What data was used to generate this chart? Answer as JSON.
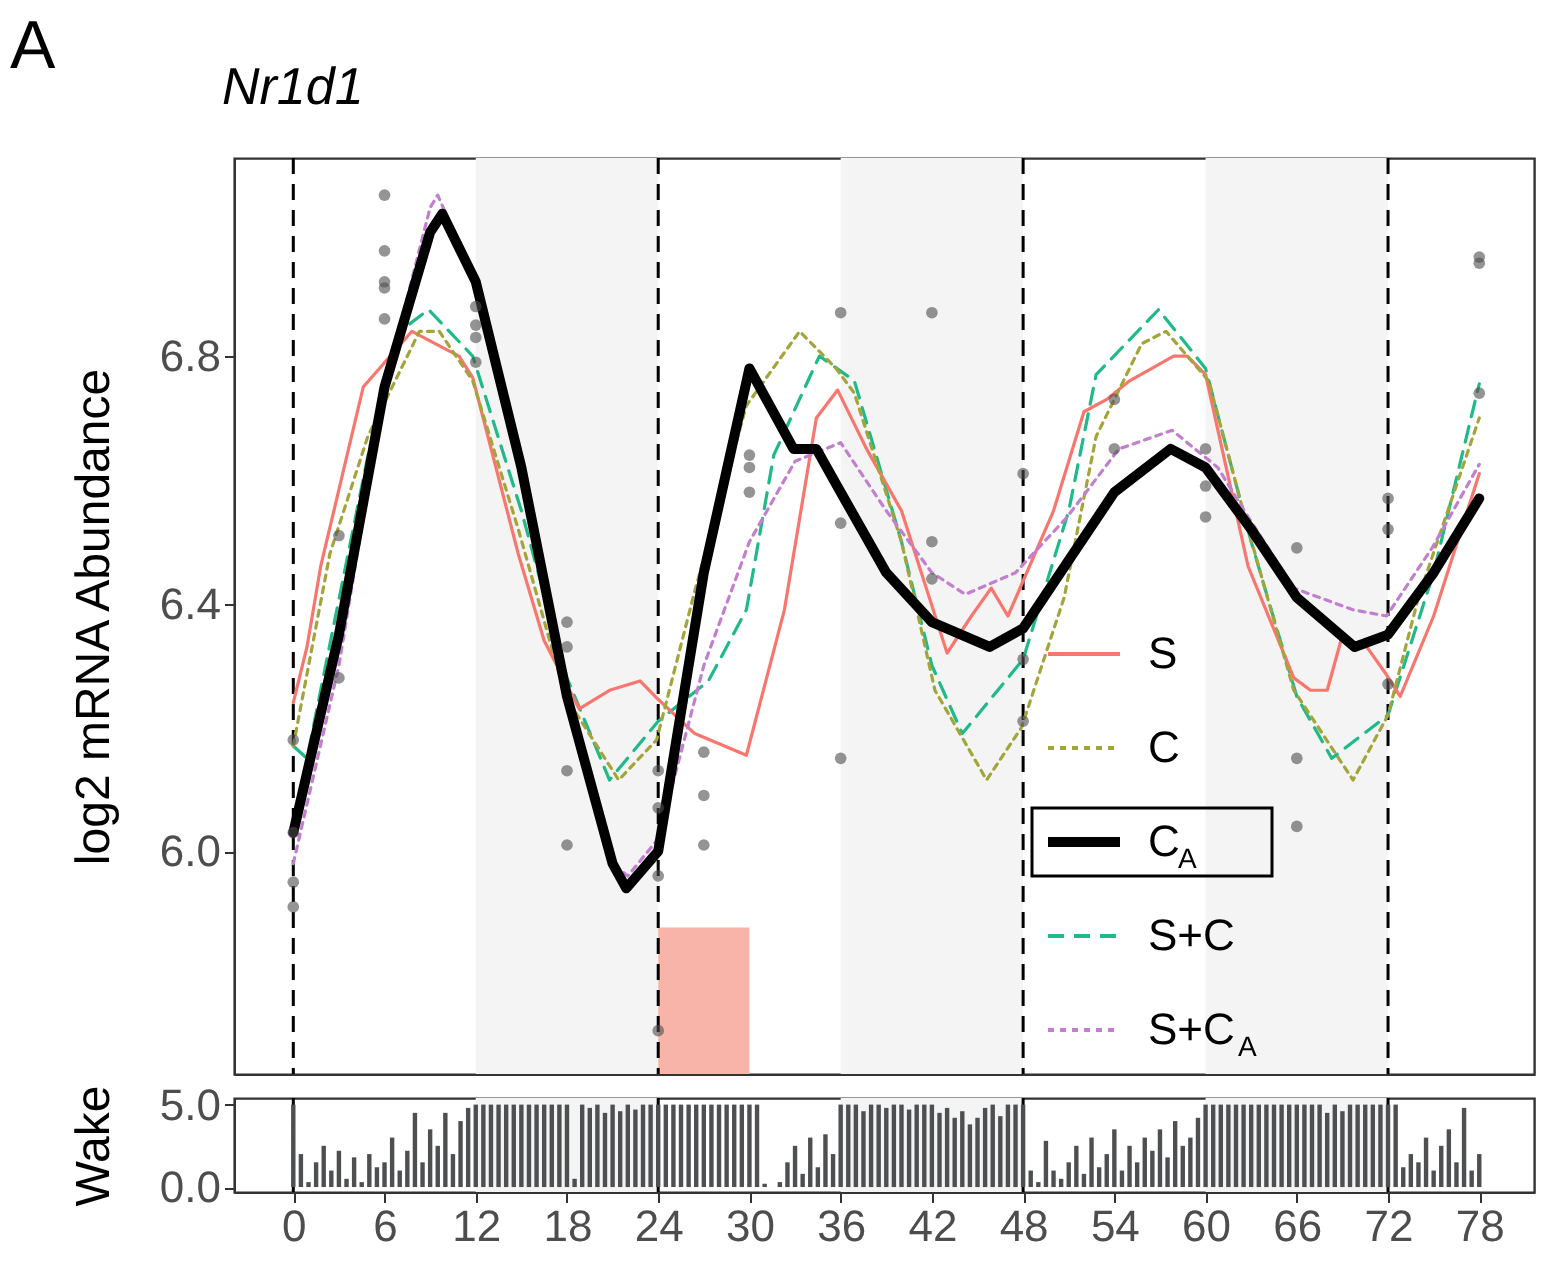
{
  "chart_data": [
    {
      "type": "line",
      "title": "Nr1d1",
      "ylabel": "log2 mRNA Abundance",
      "annotations": [
        "A"
      ],
      "xlim": [
        -3.9,
        81.6
      ],
      "xticks": [
        0,
        6,
        12,
        18,
        24,
        30,
        36,
        42,
        48,
        54,
        60,
        66,
        72,
        78
      ],
      "ylim": [
        5.64,
        7.12
      ],
      "yticks": [
        {
          "value": 6,
          "label": "6.0"
        },
        6.4,
        6.8
      ],
      "tick_labels": "y",
      "legend": "bottom right",
      "ref_lines": [
        {
          "axis": "x",
          "value": 0,
          "line_style": "dashed",
          "color": "#000000"
        },
        {
          "axis": "x",
          "value": 24,
          "line_style": "dashed",
          "color": "#000000"
        },
        {
          "axis": "x",
          "value": 48,
          "line_style": "dashed",
          "color": "#000000"
        },
        {
          "axis": "x",
          "value": 72,
          "line_style": "dashed",
          "color": "#000000"
        }
      ],
      "bands": [
        {
          "axis": "x",
          "from": 12,
          "to": 24,
          "color": "#f4f4f4"
        },
        {
          "axis": "x",
          "from": 36,
          "to": 48,
          "color": "#f4f4f4"
        },
        {
          "axis": "x",
          "from": 60,
          "to": 72,
          "color": "#f4f4f4"
        },
        {
          "axis": "x",
          "from": 24,
          "to": 30,
          "color": "#f8b4a8"
        }
      ],
      "series": [
        {
          "type": "scatter",
          "marker": "circle",
          "color": "#4d4d4d",
          "x": [
            0,
            0,
            0,
            0,
            3,
            3,
            6,
            6,
            6,
            6,
            6,
            12,
            12,
            12,
            12,
            18,
            18,
            18,
            18,
            24,
            24,
            24,
            24,
            27,
            27,
            27,
            30,
            30,
            30,
            36,
            36,
            36,
            42,
            42,
            42,
            48,
            48,
            48,
            54,
            54,
            60,
            60,
            60,
            66,
            66,
            66,
            72,
            72,
            72,
            78,
            78,
            78
          ],
          "values": [
            6.18,
            6.03,
            5.95,
            5.91,
            6.51,
            6.28,
            7.06,
            6.97,
            6.92,
            6.91,
            6.86,
            6.88,
            6.85,
            6.83,
            6.79,
            6.37,
            6.33,
            6.13,
            6.01,
            6.13,
            6.07,
            5.96,
            5.71,
            6.16,
            6.09,
            6.01,
            6.64,
            6.62,
            6.58,
            6.87,
            6.53,
            6.15,
            6.87,
            6.5,
            6.44,
            6.61,
            6.31,
            6.21,
            6.73,
            6.65,
            6.65,
            6.59,
            6.54,
            6.49,
            6.15,
            6.04,
            6.57,
            6.52,
            6.27,
            6.96,
            6.95,
            6.74
          ]
        },
        {
          "type": "line",
          "name": "S",
          "color": "#f8766d",
          "line_style": "solid",
          "x": [
            0,
            0.9,
            1.8,
            4.6,
            7.8,
            10.9,
            11.8,
            14.8,
            16.5,
            18.8,
            20.8,
            22.8,
            23.8,
            26.4,
            29.8,
            32.3,
            34.4,
            35.8,
            37.7,
            40,
            43,
            44.6,
            45.9,
            47,
            50,
            52,
            53.5,
            55,
            57.9,
            58.8,
            60,
            62.8,
            65.8,
            66.9,
            68,
            68.9,
            70.6,
            71.9,
            72.8,
            75,
            78
          ],
          "values": [
            6.24,
            6.33,
            6.46,
            6.75,
            6.84,
            6.8,
            6.765,
            6.48,
            6.34,
            6.23,
            6.26,
            6.275,
            6.25,
            6.19,
            6.155,
            6.39,
            6.7,
            6.745,
            6.65,
            6.55,
            6.32,
            6.38,
            6.425,
            6.38,
            6.55,
            6.71,
            6.73,
            6.76,
            6.8,
            6.8,
            6.77,
            6.46,
            6.28,
            6.26,
            6.26,
            6.34,
            6.33,
            6.285,
            6.25,
            6.38,
            6.61
          ]
        },
        {
          "type": "line",
          "name": "C",
          "color": "#a3a53a",
          "line_style": "dotted",
          "x": [
            0,
            2.4,
            4.9,
            8.3,
            9.6,
            11.8,
            14.8,
            17.9,
            21.4,
            23.9,
            26.4,
            29.8,
            33.3,
            35.7,
            36.9,
            40,
            42.2,
            45.6,
            47.9,
            50.7,
            52.8,
            55.8,
            57.4,
            60.2,
            62.8,
            65.8,
            69.7,
            72,
            74,
            78
          ],
          "values": [
            6.17,
            6.48,
            6.67,
            6.84,
            6.84,
            6.76,
            6.52,
            6.25,
            6.115,
            6.18,
            6.42,
            6.72,
            6.84,
            6.78,
            6.74,
            6.5,
            6.26,
            6.115,
            6.2,
            6.41,
            6.67,
            6.82,
            6.84,
            6.76,
            6.52,
            6.26,
            6.115,
            6.22,
            6.41,
            6.7
          ]
        },
        {
          "type": "line",
          "name": "C$_{A}$",
          "color": "#000000",
          "line_style": "solid",
          "x": [
            0,
            3,
            6,
            9,
            9.8,
            12,
            15,
            18,
            21,
            21.9,
            24,
            27,
            30,
            32.9,
            34.4,
            36,
            39,
            42,
            45.8,
            48,
            51,
            54,
            57.7,
            60,
            63,
            66,
            69.8,
            72,
            75,
            78
          ],
          "values": [
            6.03,
            6.35,
            6.75,
            7.0,
            7.03,
            6.92,
            6.62,
            6.25,
            5.98,
            5.94,
            6.0,
            6.45,
            6.78,
            6.65,
            6.65,
            6.58,
            6.45,
            6.37,
            6.33,
            6.36,
            6.47,
            6.58,
            6.65,
            6.62,
            6.52,
            6.41,
            6.33,
            6.35,
            6.45,
            6.57
          ]
        },
        {
          "type": "line",
          "name": "S+C",
          "color": "#1fb98a",
          "line_style": "dashed",
          "x": [
            0,
            0.9,
            2.7,
            5,
            7,
            8.9,
            11.8,
            15,
            18,
            20.8,
            24,
            27.3,
            29.8,
            31.6,
            34.6,
            36.9,
            40,
            42,
            44,
            48,
            51,
            52.8,
            56.9,
            60,
            63,
            66,
            68.3,
            72,
            75,
            78
          ],
          "values": [
            6.17,
            6.15,
            6.37,
            6.65,
            6.84,
            6.875,
            6.8,
            6.55,
            6.28,
            6.115,
            6.21,
            6.275,
            6.39,
            6.64,
            6.8,
            6.76,
            6.5,
            6.3,
            6.19,
            6.31,
            6.55,
            6.77,
            6.875,
            6.78,
            6.5,
            6.25,
            6.15,
            6.22,
            6.45,
            6.755
          ]
        },
        {
          "type": "line",
          "name": "S+C$_{A}$",
          "color": "#c27fd0",
          "line_style": "dotted",
          "x": [
            0,
            3,
            6,
            9,
            9.5,
            12,
            15,
            18,
            21,
            22,
            24,
            27,
            30,
            33,
            36,
            39,
            42,
            44.2,
            47.5,
            50.9,
            54.3,
            57.8,
            60.8,
            62.8,
            65.8,
            69.7,
            71.9,
            74.9,
            78
          ],
          "values": [
            5.98,
            6.3,
            6.75,
            7.04,
            7.06,
            6.92,
            6.6,
            6.25,
            5.98,
            5.96,
            6.02,
            6.3,
            6.5,
            6.63,
            6.66,
            6.55,
            6.45,
            6.415,
            6.45,
            6.54,
            6.65,
            6.68,
            6.62,
            6.54,
            6.425,
            6.39,
            6.38,
            6.49,
            6.625
          ]
        }
      ]
    },
    {
      "type": "bar",
      "ylabel": "Wake",
      "color": "#4d4f50",
      "xlim": [
        -3.9,
        81.6
      ],
      "xticks": [
        0,
        6,
        12,
        18,
        24,
        30,
        36,
        42,
        48,
        54,
        60,
        66,
        72,
        78
      ],
      "ylim": [
        -0.3,
        5.4
      ],
      "yticks": [
        {
          "value": 0,
          "label": "0.0"
        },
        {
          "value": 5,
          "label": "5.0"
        }
      ],
      "ref_lines": [
        {
          "axis": "x",
          "value": 0,
          "line_style": "dashed",
          "color": "#000000"
        },
        {
          "axis": "x",
          "value": 24,
          "line_style": "dashed",
          "color": "#000000"
        },
        {
          "axis": "x",
          "value": 48,
          "line_style": "dashed",
          "color": "#000000"
        },
        {
          "axis": "x",
          "value": 72,
          "line_style": "dashed",
          "color": "#000000"
        }
      ],
      "bands": [
        {
          "axis": "x",
          "from": 12,
          "to": 24,
          "color": "#f4f4f4"
        },
        {
          "axis": "x",
          "from": 36,
          "to": 48,
          "color": "#f4f4f4"
        },
        {
          "axis": "x",
          "from": 60,
          "to": 72,
          "color": "#f4f4f4"
        }
      ],
      "x": [
        0,
        0.5,
        1,
        1.5,
        2,
        2.5,
        3,
        3.5,
        4,
        4.5,
        5,
        5.5,
        6,
        6.5,
        7,
        7.5,
        8,
        8.5,
        9,
        9.5,
        10,
        10.5,
        11,
        11.5,
        12,
        12.5,
        13,
        13.5,
        14,
        14.5,
        15,
        15.5,
        16,
        16.5,
        17,
        17.5,
        18,
        18.5,
        19,
        19.5,
        20,
        20.5,
        21,
        21.5,
        22,
        22.5,
        23,
        23.5,
        24,
        24.5,
        25,
        25.5,
        26,
        26.5,
        27,
        27.5,
        28,
        28.5,
        29,
        29.5,
        30,
        30.5,
        31,
        31.5,
        32,
        32.5,
        33,
        33.5,
        34,
        34.5,
        35,
        35.5,
        36,
        36.5,
        37,
        37.5,
        38,
        38.5,
        39,
        39.5,
        40,
        40.5,
        41,
        41.5,
        42,
        42.5,
        43,
        43.5,
        44,
        44.5,
        45,
        45.5,
        46,
        46.5,
        47,
        47.5,
        48,
        48.5,
        49,
        49.5,
        50,
        50.5,
        51,
        51.5,
        52,
        52.5,
        53,
        53.5,
        54,
        54.5,
        55,
        55.5,
        56,
        56.5,
        57,
        57.5,
        58,
        58.5,
        59,
        59.5,
        60,
        60.5,
        61,
        61.5,
        62,
        62.5,
        63,
        63.5,
        64,
        64.5,
        65,
        65.5,
        66,
        66.5,
        67,
        67.5,
        68,
        68.5,
        69,
        69.5,
        70,
        70.5,
        71,
        71.5,
        72,
        72.5,
        73,
        73.5,
        74,
        74.5,
        75,
        75.5,
        76,
        76.5,
        77,
        77.5,
        78
      ],
      "values": [
        5.0,
        2.0,
        0.3,
        1.5,
        2.5,
        1.0,
        2.2,
        0.5,
        1.8,
        0.3,
        2.0,
        1.2,
        1.5,
        3.0,
        1.0,
        2.2,
        4.5,
        1.5,
        3.5,
        2.5,
        4.5,
        2.0,
        4.0,
        4.8,
        5.0,
        5.0,
        5.0,
        5.0,
        5.0,
        5.0,
        5.0,
        5.0,
        5.0,
        5.0,
        5.0,
        5.0,
        5.0,
        0.5,
        5.0,
        4.8,
        5.0,
        4.5,
        5.0,
        4.6,
        5.0,
        4.7,
        5.0,
        5.0,
        5.0,
        5.0,
        5.0,
        5.0,
        5.0,
        5.0,
        5.0,
        5.0,
        5.0,
        5.0,
        5.0,
        5.0,
        5.0,
        5.0,
        0.2,
        0.0,
        0.3,
        1.5,
        2.5,
        0.8,
        3.0,
        1.2,
        3.2,
        2.0,
        5.0,
        5.0,
        5.0,
        4.6,
        5.0,
        5.0,
        4.8,
        5.0,
        5.0,
        4.7,
        5.0,
        5.0,
        5.0,
        4.5,
        4.8,
        4.2,
        4.6,
        3.8,
        4.2,
        4.8,
        5.0,
        4.3,
        5.0,
        5.0,
        5.0,
        1.0,
        0.3,
        2.8,
        1.0,
        0.5,
        1.5,
        2.5,
        0.8,
        3.0,
        1.2,
        2.0,
        3.5,
        1.0,
        2.5,
        1.5,
        3.0,
        2.2,
        3.5,
        1.8,
        4.0,
        2.5,
        3.0,
        4.2,
        5.0,
        5.0,
        5.0,
        5.0,
        5.0,
        5.0,
        5.0,
        5.0,
        5.0,
        5.0,
        5.0,
        5.0,
        5.0,
        5.0,
        5.0,
        5.0,
        4.5,
        5.0,
        4.6,
        5.0,
        5.0,
        5.0,
        5.0,
        5.0,
        5.0,
        5.0,
        1.2,
        2.0,
        1.5,
        3.0,
        1.0,
        2.5,
        3.5,
        1.5,
        4.8,
        1.0,
        2.0
      ]
    }
  ]
}
